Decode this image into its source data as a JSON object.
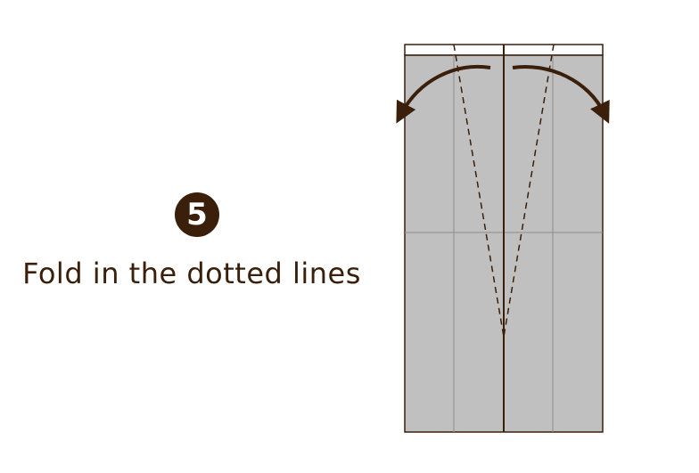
{
  "step": {
    "number": "5",
    "instruction": "Fold in the dotted lines"
  },
  "colors": {
    "ink": "#3a1f0a",
    "badge": "#3a1f0a",
    "paper_gray": "#c0c0c0",
    "paper_white": "#ffffff",
    "crease": "#8c8c8c"
  }
}
